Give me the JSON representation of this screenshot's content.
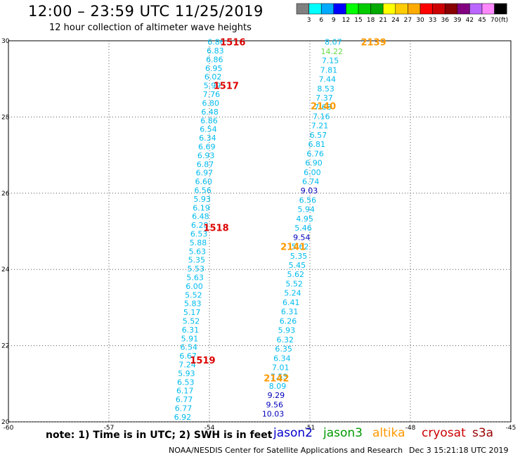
{
  "header": {
    "title": "12:00 – 23:59 UTC 11/25/2019",
    "subtitle": "12 hour collection of altimeter wave heights"
  },
  "colorbar": {
    "labels": [
      "3",
      "6",
      "9",
      "12",
      "15",
      "18",
      "21",
      "24",
      "27",
      "30",
      "33",
      "36",
      "39",
      "42",
      "45",
      "70"
    ],
    "unit": "(ft)",
    "colors": [
      "#808080",
      "#00ffff",
      "#00aaff",
      "#0000ff",
      "#00ff00",
      "#00cc00",
      "#00aa00",
      "#ffff00",
      "#ffcc00",
      "#ffaa00",
      "#ff0000",
      "#cc0000",
      "#880000",
      "#800080",
      "#bb66ff",
      "#ff88ff",
      "#000000"
    ]
  },
  "footer": {
    "note": "note: 1) Time is in UTC; 2) SWH is in feet",
    "credit": "NOAA/NESDIS Center for Satellite Applications and Research",
    "timestamp": "Dec  3 15:21:18 UTC 2019"
  },
  "missions": [
    {
      "name": "jason2",
      "color": "#0000cc"
    },
    {
      "name": "jason3",
      "color": "#009900"
    },
    {
      "name": "altika",
      "color": "#ff9900"
    },
    {
      "name": "cryosat",
      "color": "#cc0000"
    },
    {
      "name": "s3a",
      "color": "#990000"
    }
  ],
  "chart_data": {
    "type": "scatter",
    "xlim": [
      -60,
      -45
    ],
    "ylim": [
      20,
      30
    ],
    "x_ticks": [
      -60,
      -57,
      -54,
      -51,
      -48,
      -45
    ],
    "x_tick_labels": [
      "-60",
      "-57",
      "-54",
      "-51",
      "-48",
      "-45"
    ],
    "y_ticks": [
      20,
      22,
      24,
      26,
      28,
      30
    ],
    "y_tick_labels": [
      "20",
      "22",
      "24",
      "26",
      "28",
      "30"
    ],
    "grid": true,
    "tracks": [
      {
        "name": "track-a",
        "top": {
          "lat": 29.97,
          "lon": -53.8
        },
        "bottom": {
          "lat": 20.13,
          "lon": -54.8
        },
        "values": [
          "6.86",
          "6.83",
          "6.86",
          "6.95",
          "6.02",
          "5.99",
          "7.76",
          "6.80",
          "6.48",
          "6.86",
          "6.54",
          "6.34",
          "6.69",
          "6.93",
          "6.87",
          "6.97",
          "6.60",
          "6.56",
          "5.93",
          "6.19",
          "6.48",
          "6.28",
          "6.53",
          "5.88",
          "5.63",
          "5.35",
          "5.53",
          "5.63",
          "6.00",
          "5.52",
          "5.83",
          "5.17",
          "5.52",
          "6.31",
          "5.91",
          "6.54",
          "6.67",
          "7.24",
          "5.93",
          "6.53",
          "6.17",
          "6.77",
          "6.77",
          "6.92"
        ],
        "colors": [
          "#00bbee",
          "#00bbee",
          "#00bbee",
          "#00bbee",
          "#00bbee",
          "#00bbee",
          "#00bbee",
          "#00bbee",
          "#00bbee",
          "#00bbee",
          "#00bbee",
          "#00bbee",
          "#00bbee",
          "#00bbee",
          "#00bbee",
          "#00bbee",
          "#00bbee",
          "#00bbee",
          "#00bbee",
          "#00bbee",
          "#00bbee",
          "#00bbee",
          "#00bbee",
          "#00bbee",
          "#00bbee",
          "#00bbee",
          "#00bbee",
          "#00bbee",
          "#00bbee",
          "#00bbee",
          "#00bbee",
          "#00bbee",
          "#00bbee",
          "#00bbee",
          "#00bbee",
          "#00bbee",
          "#00bbee",
          "#00bbee",
          "#00bbee",
          "#00bbee",
          "#00bbee",
          "#00bbee",
          "#00bbee",
          "#00bbee"
        ]
      },
      {
        "name": "track-b",
        "top": {
          "lat": 29.97,
          "lon": -50.3
        },
        "bottom": {
          "lat": 20.21,
          "lon": -52.1
        },
        "values": [
          "8.07",
          "14.22",
          "7.15",
          "7.81",
          "7.44",
          "8.53",
          "7.37",
          "7.68",
          "7.16",
          "7.21",
          "6.57",
          "6.81",
          "6.76",
          "6.90",
          "6.00",
          "6.74",
          "9.03",
          "6.56",
          "5.94",
          "4.95",
          "5.46",
          "9.54",
          "5.62",
          "5.35",
          "5.45",
          "5.62",
          "5.52",
          "5.24",
          "6.41",
          "6.31",
          "6.26",
          "5.93",
          "6.32",
          "6.35",
          "6.34",
          "7.01",
          "7.53",
          "8.09",
          "9.29",
          "9.56",
          "10.03"
        ],
        "colors": [
          "#00bbee",
          "#66dd44",
          "#00bbee",
          "#00bbee",
          "#00bbee",
          "#00bbee",
          "#00bbee",
          "#00bbee",
          "#00bbee",
          "#00bbee",
          "#00bbee",
          "#00bbee",
          "#00bbee",
          "#00bbee",
          "#00bbee",
          "#00bbee",
          "#0000bb",
          "#00bbee",
          "#00bbee",
          "#00bbee",
          "#00bbee",
          "#0000bb",
          "#00bbee",
          "#00bbee",
          "#00bbee",
          "#00bbee",
          "#00bbee",
          "#00bbee",
          "#00bbee",
          "#00bbee",
          "#00bbee",
          "#00bbee",
          "#00bbee",
          "#00bbee",
          "#00bbee",
          "#00bbee",
          "#00bbee",
          "#00bbee",
          "#0000bb",
          "#0000bb",
          "#0000bb"
        ]
      }
    ],
    "annotations": [
      {
        "text": "1516",
        "lat": 29.97,
        "lon": -53.3,
        "color": "#dd0000"
      },
      {
        "text": "1517",
        "lat": 28.83,
        "lon": -53.5,
        "color": "#dd0000"
      },
      {
        "text": "1518",
        "lat": 25.1,
        "lon": -53.8,
        "color": "#dd0000"
      },
      {
        "text": "1519",
        "lat": 21.62,
        "lon": -54.2,
        "color": "#dd0000"
      },
      {
        "text": "2139",
        "lat": 29.97,
        "lon": -49.1,
        "color": "#ff9900"
      },
      {
        "text": "2140",
        "lat": 28.29,
        "lon": -50.6,
        "color": "#ff9900"
      },
      {
        "text": "2141",
        "lat": 24.6,
        "lon": -51.5,
        "color": "#ff9900"
      },
      {
        "text": "2142",
        "lat": 21.15,
        "lon": -52.0,
        "color": "#ff9900"
      }
    ]
  }
}
